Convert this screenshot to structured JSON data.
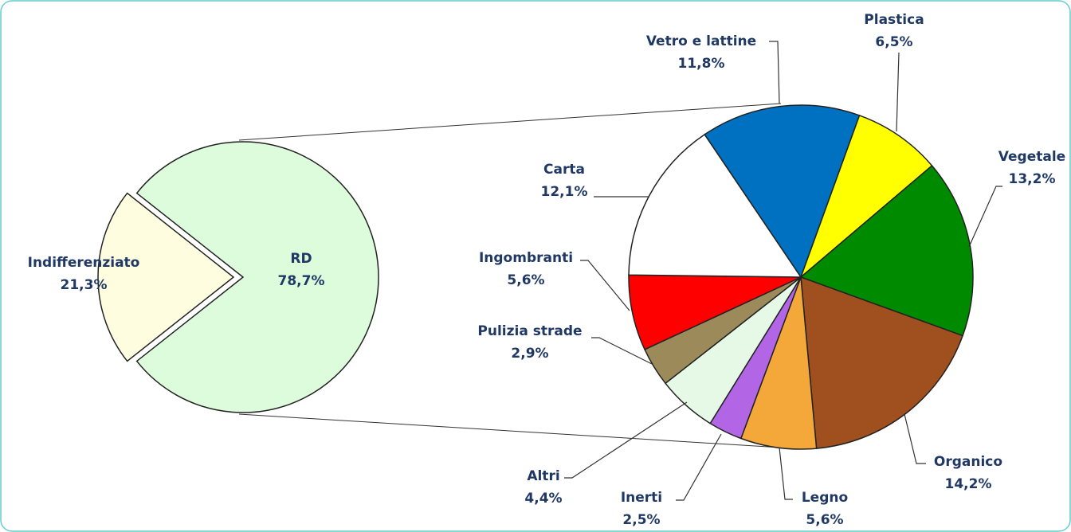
{
  "chart_data": [
    {
      "type": "pie",
      "categories": [
        "Indifferenziato",
        "RD"
      ],
      "values": [
        21.3,
        78.7
      ],
      "value_labels": [
        "21,3%",
        "78,7%"
      ],
      "colors": [
        "#fffde0",
        "#dcfcdc"
      ]
    },
    {
      "type": "pie",
      "categories": [
        "Vetro e lattine",
        "Plastica",
        "Vegetale",
        "Organico",
        "Legno",
        "Inerti",
        "Altri",
        "Pulizia strade",
        "Ingombranti",
        "Carta"
      ],
      "values": [
        11.8,
        6.5,
        13.2,
        14.2,
        5.6,
        2.5,
        4.4,
        2.9,
        5.6,
        12.1
      ],
      "value_labels": [
        "11,8%",
        "6,5%",
        "13,2%",
        "14,2%",
        "5,6%",
        "2,5%",
        "4,4%",
        "2,9%",
        "5,6%",
        "12,1%"
      ],
      "colors": [
        "#0070c0",
        "#ffff00",
        "#008a00",
        "#a0501e",
        "#f4a83a",
        "#b266e6",
        "#e6f8e6",
        "#9c8a5a",
        "#ff0000",
        "#ffffff"
      ]
    }
  ]
}
